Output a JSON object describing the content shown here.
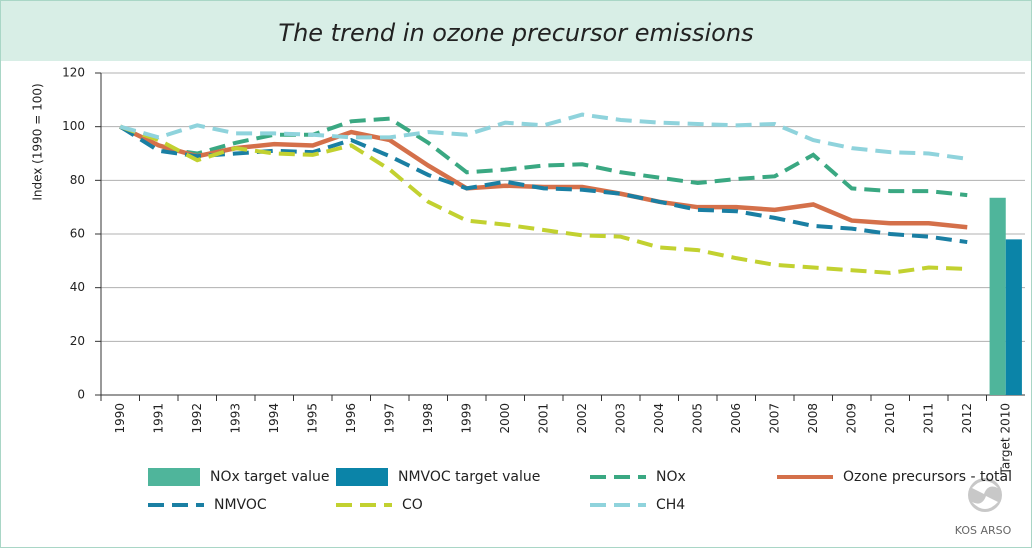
{
  "chart_data": {
    "type": "line",
    "title": "The trend in ozone precursor emissions",
    "y_label": "Index (1990 = 100)",
    "categories": [
      "1990",
      "1991",
      "1992",
      "1993",
      "1994",
      "1995",
      "1996",
      "1997",
      "1998",
      "1999",
      "2000",
      "2001",
      "2002",
      "2003",
      "2004",
      "2005",
      "2006",
      "2007",
      "2008",
      "2009",
      "2010",
      "2011",
      "2012",
      "Target 2010"
    ],
    "ylim": [
      0,
      120
    ],
    "yticks": [
      0,
      20,
      40,
      60,
      80,
      100,
      120
    ],
    "grid": true,
    "series": [
      {
        "name": "NOx target value",
        "kind": "bar",
        "color": "#4fb59b",
        "values": [
          null,
          null,
          null,
          null,
          null,
          null,
          null,
          null,
          null,
          null,
          null,
          null,
          null,
          null,
          null,
          null,
          null,
          null,
          null,
          null,
          null,
          null,
          null,
          73.5
        ]
      },
      {
        "name": "NMVOC target value",
        "kind": "bar",
        "color": "#0b84a8",
        "values": [
          null,
          null,
          null,
          null,
          null,
          null,
          null,
          null,
          null,
          null,
          null,
          null,
          null,
          null,
          null,
          null,
          null,
          null,
          null,
          null,
          null,
          null,
          null,
          58
        ]
      },
      {
        "name": "NOx",
        "kind": "line",
        "dashed": true,
        "color": "#3aa882",
        "values": [
          100,
          92,
          90,
          94,
          97,
          97,
          102,
          103,
          94,
          83,
          84,
          85.5,
          86,
          83,
          81,
          79,
          80.5,
          81.5,
          89.5,
          77,
          76,
          76,
          74.5,
          null
        ]
      },
      {
        "name": "Ozone precursors - total",
        "kind": "line",
        "dashed": false,
        "color": "#d4704a",
        "values": [
          100,
          93,
          89,
          92,
          93.5,
          93,
          98,
          95,
          85.5,
          77,
          78,
          77.5,
          77.5,
          75,
          72,
          70,
          70,
          69,
          71,
          65,
          64,
          64,
          62.5,
          null
        ]
      },
      {
        "name": "NMVOC",
        "kind": "line",
        "dashed": true,
        "color": "#1a7fa3",
        "values": [
          100,
          91,
          89,
          90,
          91,
          90.5,
          95,
          89,
          82,
          77,
          79.5,
          77,
          76.5,
          75,
          72,
          69,
          68.5,
          66,
          63,
          62,
          60,
          59,
          57,
          null
        ]
      },
      {
        "name": "CO",
        "kind": "line",
        "dashed": true,
        "color": "#c2d130",
        "values": [
          100,
          95,
          87.5,
          92,
          90,
          89.5,
          93,
          84,
          72,
          65,
          63.5,
          61.5,
          59.5,
          59,
          55,
          54,
          51,
          48.5,
          47.5,
          46.5,
          45.5,
          47.5,
          47,
          null
        ]
      },
      {
        "name": "CH4",
        "kind": "line",
        "dashed": true,
        "color": "#8fd3dc",
        "values": [
          100,
          96,
          100.5,
          97.5,
          97.5,
          97,
          96,
          96,
          98,
          97,
          101.5,
          100.5,
          104.5,
          102.5,
          101.5,
          101,
          100.5,
          101,
          95,
          92,
          90.5,
          90,
          88,
          null
        ]
      }
    ],
    "source": "KOS ARSO"
  }
}
